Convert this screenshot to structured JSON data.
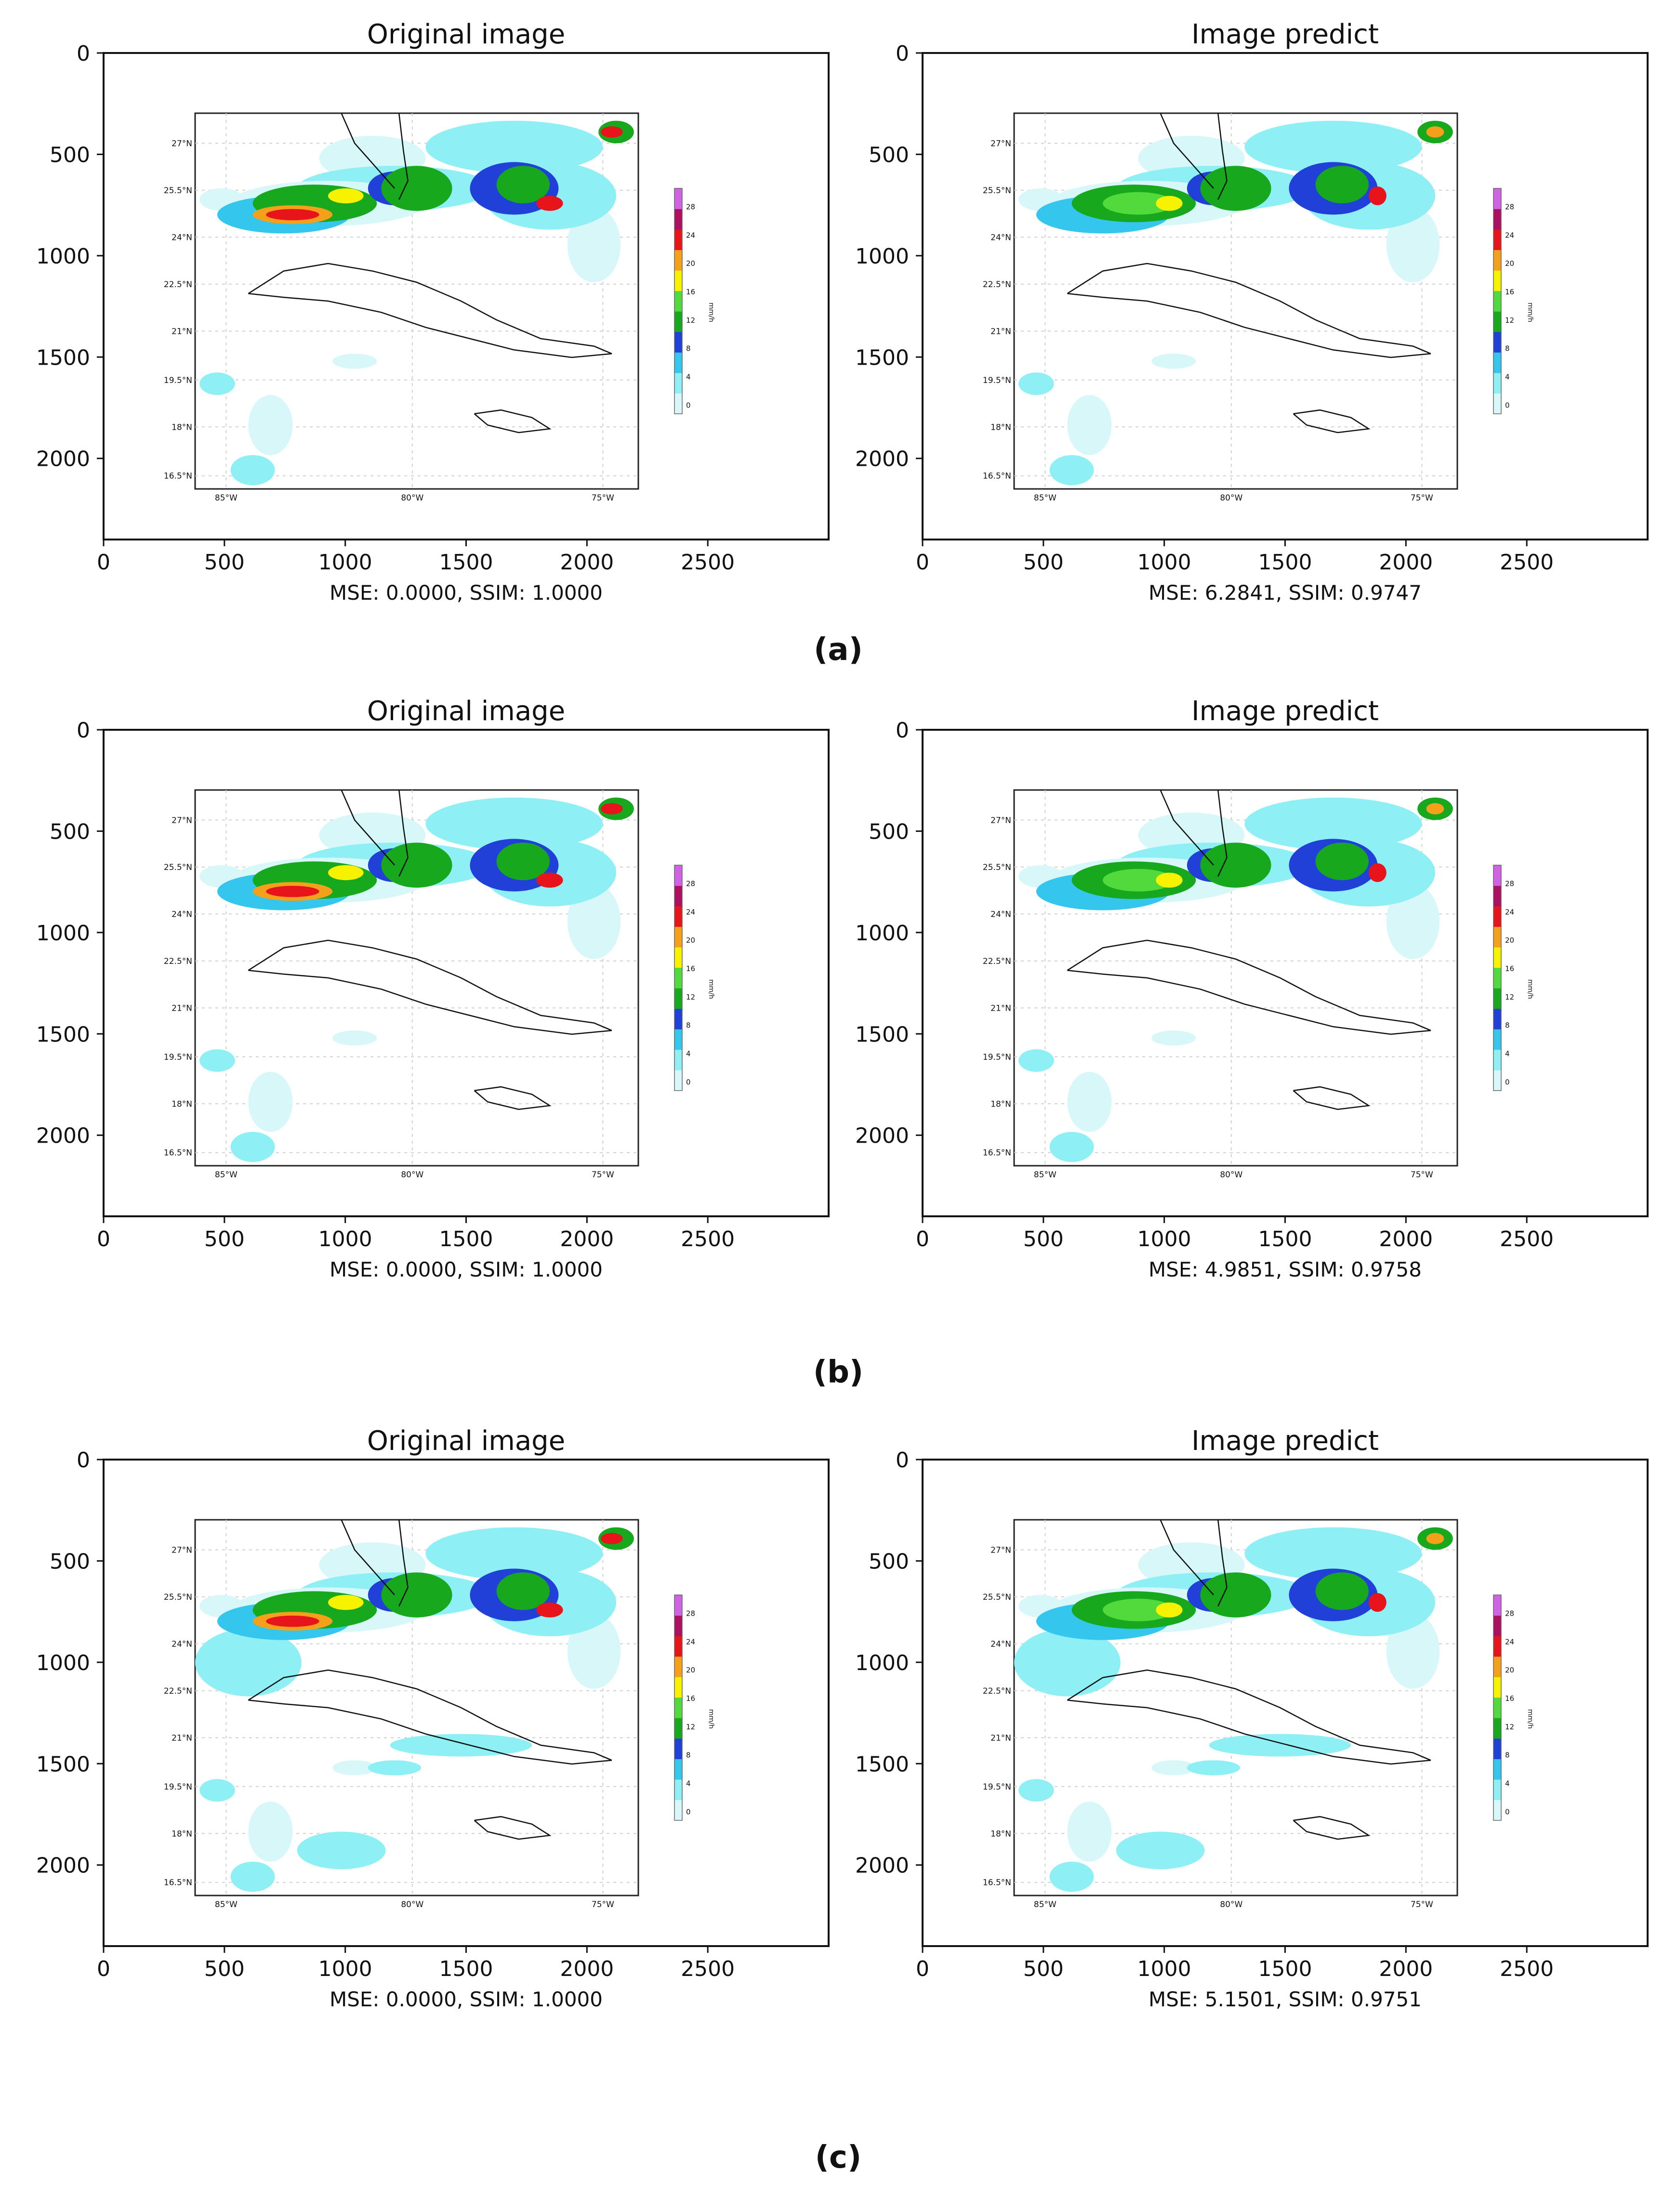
{
  "figure": {
    "rows": [
      {
        "label": "(a)",
        "label_letter": "a",
        "panels": [
          {
            "title": "Original image",
            "metric": "MSE: 0.0000, SSIM: 1.0000"
          },
          {
            "title": "Image predict",
            "metric": "MSE: 6.2841, SSIM: 0.9747"
          }
        ]
      },
      {
        "label": "(b)",
        "label_letter": "b",
        "panels": [
          {
            "title": "Original image",
            "metric": "MSE: 0.0000, SSIM: 1.0000"
          },
          {
            "title": "Image predict",
            "metric": "MSE: 4.9851, SSIM: 0.9758"
          }
        ]
      },
      {
        "label": "(c)",
        "label_letter": "c",
        "panels": [
          {
            "title": "Original image",
            "metric": "MSE: 0.0000, SSIM: 1.0000"
          },
          {
            "title": "Image predict",
            "metric": "MSE: 5.1501, SSIM: 0.9751"
          }
        ]
      }
    ],
    "x_ticks": [
      0,
      500,
      1000,
      1500,
      2000,
      2500
    ],
    "y_ticks": [
      0,
      500,
      1000,
      1500,
      2000
    ],
    "axis_range": {
      "x": [
        0,
        3000
      ],
      "y": [
        2400,
        0
      ]
    },
    "map": {
      "lat_labels": [
        "27°N",
        "25.5°N",
        "24°N",
        "22.5°N",
        "21°N",
        "19.5°N",
        "18°N",
        "16.5°N"
      ],
      "lon_labels": [
        "85°W",
        "80°W",
        "75°W"
      ],
      "colorbar_ticks": [
        "28",
        "24",
        "20",
        "16",
        "12",
        "8",
        "4",
        "0"
      ],
      "colorbar_unit": "mm/h",
      "colorbar_colors": [
        "#d7f7f9",
        "#8ef0f5",
        "#35c6ee",
        "#2040d8",
        "#18a81e",
        "#52d93c",
        "#f6f200",
        "#f4a01b",
        "#e8141b",
        "#ad1060",
        "#d262e5"
      ]
    }
  }
}
